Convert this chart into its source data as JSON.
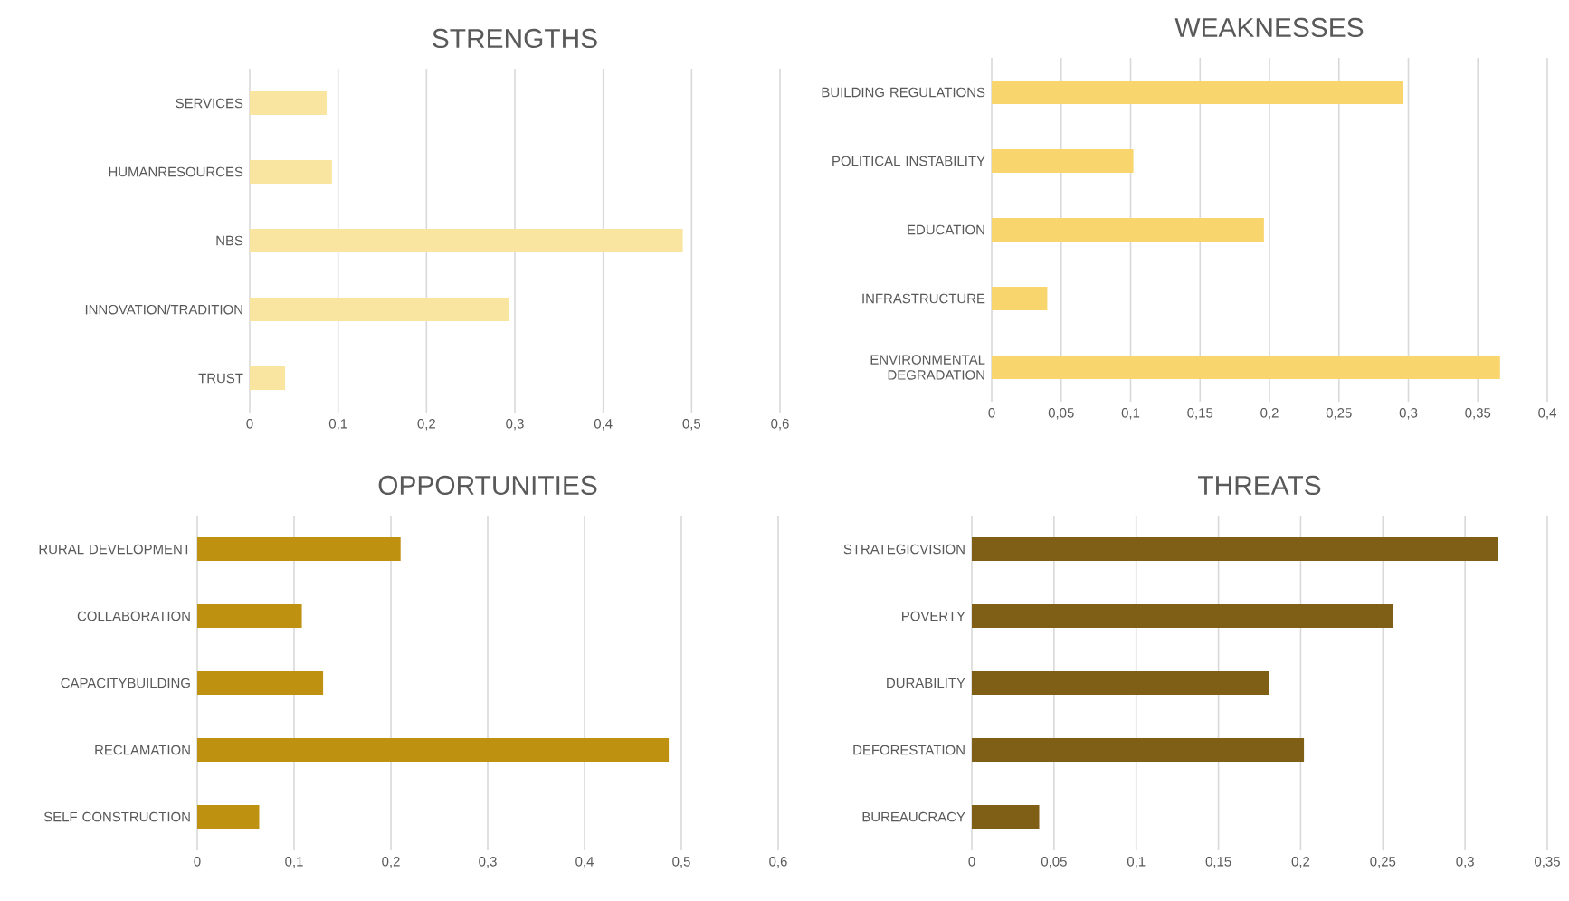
{
  "chart_data": [
    {
      "type": "bar",
      "orientation": "horizontal",
      "title": "STRENGTHS",
      "categories": [
        "SERVICES",
        "HUMANRESOURCES",
        "NBS",
        "INNOVATION/TRADITION",
        "TRUST"
      ],
      "values": [
        0.087,
        0.093,
        0.49,
        0.293,
        0.04
      ],
      "color": "#fae5a0",
      "xlim": [
        0,
        0.6
      ],
      "xticks": [
        0,
        {
          "value": 0.1,
          "label": "0,1"
        },
        {
          "value": 0.2,
          "label": "0,2"
        },
        {
          "value": 0.3,
          "label": "0,3"
        },
        {
          "value": 0.4,
          "label": "0,4"
        },
        {
          "value": 0.5,
          "label": "0,5"
        },
        {
          "value": 0.6,
          "label": "0,6"
        }
      ],
      "grid": "x"
    },
    {
      "type": "bar",
      "orientation": "horizontal",
      "title": "WEAKNESSES",
      "categories": [
        "BUILDING REGULATIONS",
        "POLITICAL INSTABILITY",
        "EDUCATION",
        "INFRASTRUCTURE",
        "ENVIRONMENTAL DEGRADATION"
      ],
      "values": [
        0.296,
        0.102,
        0.196,
        0.04,
        0.366
      ],
      "color": "#f9d56e",
      "xlim": [
        0,
        0.4
      ],
      "xticks": [
        0,
        {
          "value": 0.05,
          "label": "0,05"
        },
        {
          "value": 0.1,
          "label": "0,1"
        },
        {
          "value": 0.15,
          "label": "0,15"
        },
        {
          "value": 0.2,
          "label": "0,2"
        },
        {
          "value": 0.25,
          "label": "0,25"
        },
        {
          "value": 0.3,
          "label": "0,3"
        },
        {
          "value": 0.35,
          "label": "0,35"
        },
        {
          "value": 0.4,
          "label": "0,4"
        }
      ],
      "grid": "x"
    },
    {
      "type": "bar",
      "orientation": "horizontal",
      "title": "OPPORTUNITIES",
      "categories": [
        "RURAL DEVELOPMENT",
        "COLLABORATION",
        "CAPACITYBUILDING",
        "RECLAMATION",
        "SELF CONSTRUCTION"
      ],
      "values": [
        0.21,
        0.108,
        0.13,
        0.487,
        0.064
      ],
      "color": "#bf9110",
      "xlim": [
        0,
        0.6
      ],
      "xticks": [
        0,
        {
          "value": 0.1,
          "label": "0,1"
        },
        {
          "value": 0.2,
          "label": "0,2"
        },
        {
          "value": 0.3,
          "label": "0,3"
        },
        {
          "value": 0.4,
          "label": "0,4"
        },
        {
          "value": 0.5,
          "label": "0,5"
        },
        {
          "value": 0.6,
          "label": "0,6"
        }
      ],
      "grid": "x"
    },
    {
      "type": "bar",
      "orientation": "horizontal",
      "title": "THREATS",
      "categories": [
        "STRATEGICVISION",
        "POVERTY",
        "DURABILITY",
        "DEFORESTATION",
        "BUREAUCRACY"
      ],
      "values": [
        0.32,
        0.256,
        0.181,
        0.202,
        0.041
      ],
      "color": "#7f5f16",
      "xlim": [
        0,
        0.35
      ],
      "xticks": [
        0,
        {
          "value": 0.05,
          "label": "0,05"
        },
        {
          "value": 0.1,
          "label": "0,1"
        },
        {
          "value": 0.15,
          "label": "0,15"
        },
        {
          "value": 0.2,
          "label": "0,2"
        },
        {
          "value": 0.25,
          "label": "0,25"
        },
        {
          "value": 0.3,
          "label": "0,3"
        },
        {
          "value": 0.35,
          "label": "0,35"
        }
      ],
      "grid": "x"
    }
  ]
}
